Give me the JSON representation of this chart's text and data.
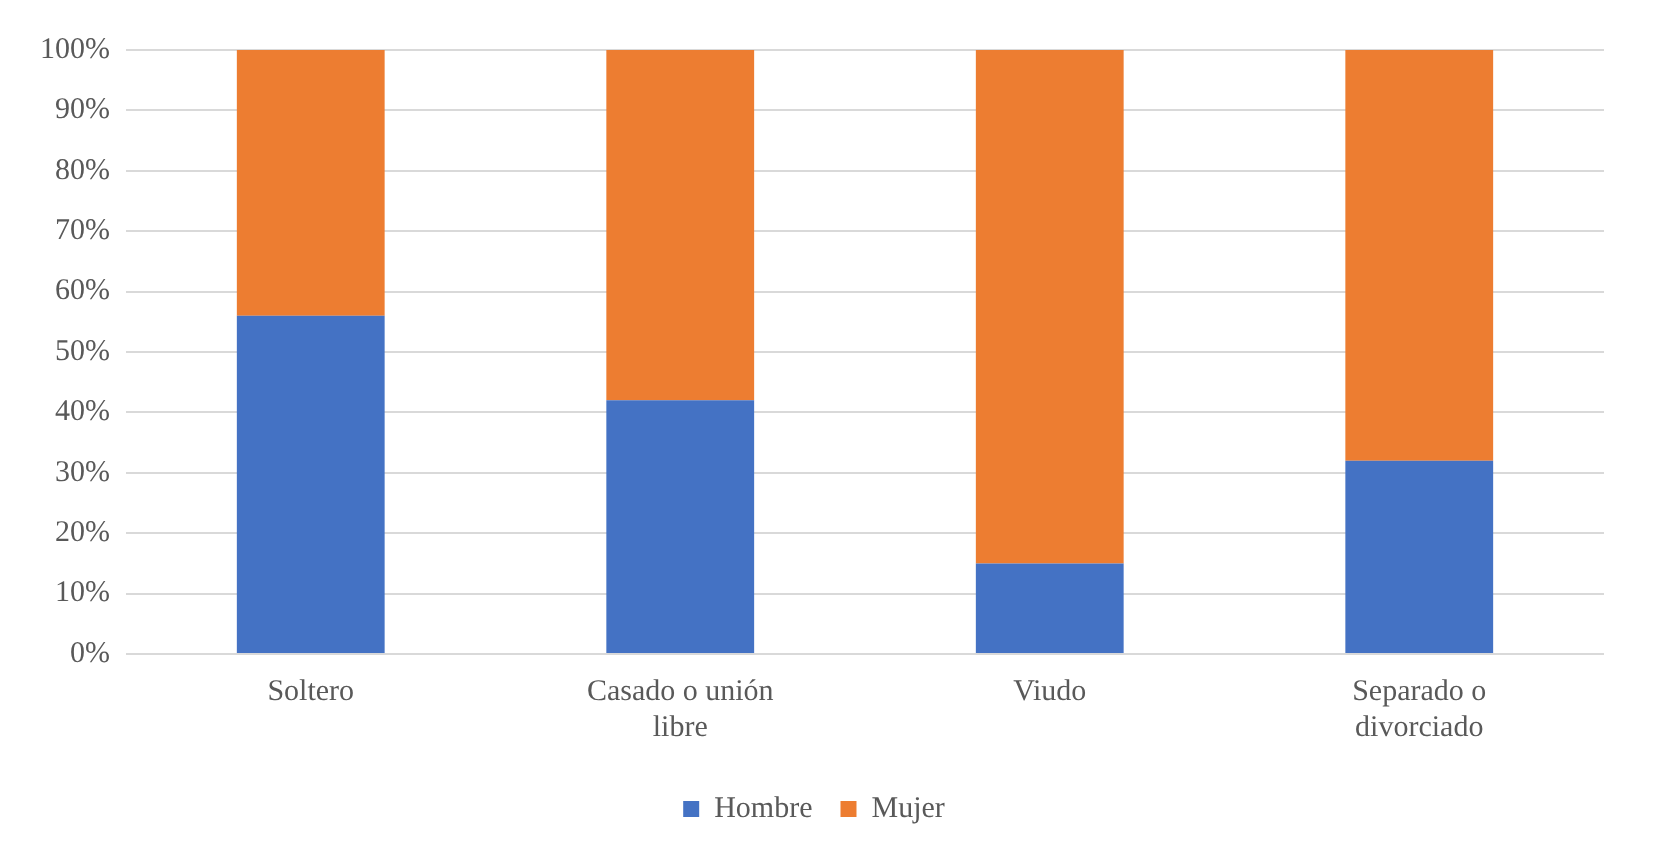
{
  "chart_data": {
    "type": "bar",
    "stacked": true,
    "categories": [
      "Soltero",
      "Casado o unión libre",
      "Viudo",
      "Separado o divorciado"
    ],
    "series": [
      {
        "name": "Hombre",
        "color": "#4472c4",
        "values": [
          56,
          42,
          15,
          32
        ]
      },
      {
        "name": "Mujer",
        "color": "#ed7d31",
        "values": [
          44,
          58,
          85,
          68
        ]
      }
    ],
    "ylim": [
      0,
      100
    ],
    "yticks": [
      {
        "value": 0,
        "label": "0%"
      },
      {
        "value": 10,
        "label": "10%"
      },
      {
        "value": 20,
        "label": "20%"
      },
      {
        "value": 30,
        "label": "30%"
      },
      {
        "value": 40,
        "label": "40%"
      },
      {
        "value": 50,
        "label": "50%"
      },
      {
        "value": 60,
        "label": "60%"
      },
      {
        "value": 70,
        "label": "70%"
      },
      {
        "value": 80,
        "label": "80%"
      },
      {
        "value": 90,
        "label": "90%"
      },
      {
        "value": 100,
        "label": "100%"
      }
    ],
    "grid": "y",
    "legend": "bottom"
  }
}
